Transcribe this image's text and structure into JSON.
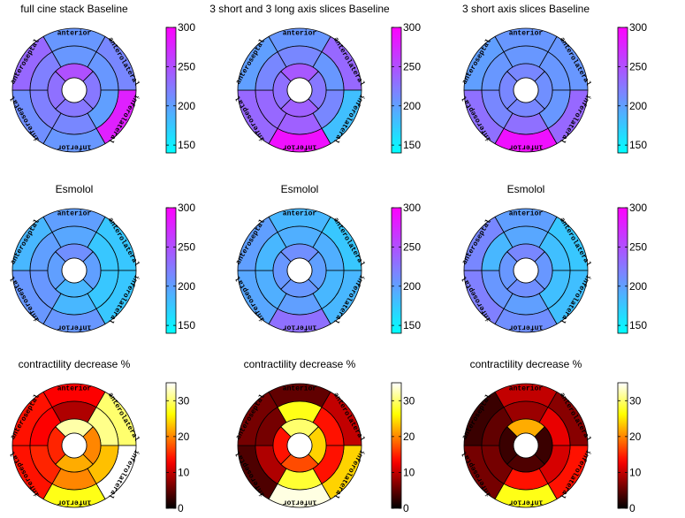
{
  "chart_data": [
    {
      "type": "bullseye",
      "title": "full cine stack Baseline",
      "colormap": "cool",
      "clim": [
        140,
        300
      ],
      "colorbar_ticks": [
        150,
        200,
        250,
        300
      ],
      "segment_labels": [
        "anterior",
        "anterolateral",
        "inferolateral",
        "inferior",
        "inferoseptal",
        "anteroseptal"
      ],
      "values": {
        "basal": [
          205,
          215,
          280,
          205,
          210,
          235
        ],
        "mid": [
          205,
          205,
          200,
          215,
          220,
          220
        ],
        "apical": [
          250,
          225,
          225,
          230
        ]
      }
    },
    {
      "type": "bullseye",
      "title": "3 short and 3 long axis slices Baseline",
      "colormap": "cool",
      "clim": [
        140,
        300
      ],
      "colorbar_ticks": [
        150,
        200,
        250,
        300
      ],
      "segment_labels": [
        "anterior",
        "anterolateral",
        "inferolateral",
        "inferior",
        "inferoseptal",
        "anteroseptal"
      ],
      "values": {
        "basal": [
          205,
          235,
          180,
          290,
          235,
          200
        ],
        "mid": [
          215,
          205,
          215,
          240,
          235,
          215
        ],
        "apical": [
          245,
          225,
          240,
          230
        ]
      }
    },
    {
      "type": "bullseye",
      "title": "3 short axis slices Baseline",
      "colormap": "cool",
      "clim": [
        140,
        300
      ],
      "colorbar_ticks": [
        150,
        200,
        250,
        300
      ],
      "segment_labels": [
        "anterior",
        "anterolateral",
        "inferolateral",
        "inferior",
        "inferoseptal",
        "anteroseptal"
      ],
      "values": {
        "basal": [
          205,
          205,
          235,
          290,
          230,
          200
        ],
        "mid": [
          205,
          205,
          205,
          230,
          215,
          205
        ],
        "apical": [
          215,
          210,
          215,
          215
        ]
      }
    },
    {
      "type": "bullseye",
      "title": "Esmolol",
      "colormap": "cool",
      "clim": [
        140,
        300
      ],
      "colorbar_ticks": [
        150,
        200,
        250,
        300
      ],
      "segment_labels": [
        "anterior",
        "anterolateral",
        "inferolateral",
        "inferior",
        "inferoseptal",
        "anteroseptal"
      ],
      "values": {
        "basal": [
          200,
          175,
          175,
          205,
          205,
          185
        ],
        "mid": [
          195,
          175,
          175,
          185,
          205,
          200
        ],
        "apical": [
          210,
          200,
          185,
          200
        ]
      }
    },
    {
      "type": "bullseye",
      "title": "Esmolol",
      "colormap": "cool",
      "clim": [
        140,
        300
      ],
      "colorbar_ticks": [
        150,
        200,
        250,
        300
      ],
      "segment_labels": [
        "anterior",
        "anterolateral",
        "inferolateral",
        "inferior",
        "inferoseptal",
        "anteroseptal"
      ],
      "values": {
        "basal": [
          185,
          175,
          185,
          230,
          195,
          200
        ],
        "mid": [
          190,
          190,
          185,
          200,
          190,
          185
        ],
        "apical": [
          210,
          200,
          205,
          205
        ]
      }
    },
    {
      "type": "bullseye",
      "title": "Esmolol",
      "colormap": "cool",
      "clim": [
        140,
        300
      ],
      "colorbar_ticks": [
        150,
        200,
        250,
        300
      ],
      "segment_labels": [
        "anterior",
        "anterolateral",
        "inferolateral",
        "inferior",
        "inferoseptal",
        "anteroseptal"
      ],
      "values": {
        "basal": [
          200,
          175,
          180,
          210,
          220,
          215
        ],
        "mid": [
          195,
          180,
          180,
          200,
          205,
          185
        ],
        "apical": [
          215,
          205,
          210,
          205
        ]
      }
    },
    {
      "type": "bullseye",
      "title": "contractility decrease %",
      "colormap": "hot",
      "clim": [
        0,
        35
      ],
      "colorbar_ticks": [
        0,
        10,
        20,
        30
      ],
      "segment_labels": [
        "anterior",
        "anterolateral",
        "inferolateral",
        "inferior",
        "inferoseptal",
        "anteroseptal"
      ],
      "values": {
        "basal": [
          13,
          30,
          35,
          27,
          14,
          14
        ],
        "mid": [
          9,
          31,
          23,
          20,
          15,
          13
        ],
        "apical": [
          32,
          20,
          22,
          15
        ]
      }
    },
    {
      "type": "bullseye",
      "title": "contractility decrease %",
      "colormap": "hot",
      "clim": [
        0,
        35
      ],
      "colorbar_ticks": [
        0,
        10,
        20,
        30
      ],
      "segment_labels": [
        "anterior",
        "anterolateral",
        "inferolateral",
        "inferior",
        "inferoseptal",
        "anteroseptal"
      ],
      "values": {
        "basal": [
          5,
          10,
          24,
          34,
          4,
          6
        ],
        "mid": [
          27,
          14,
          14,
          28,
          9,
          6
        ],
        "apical": [
          30,
          24,
          17,
          14
        ]
      }
    },
    {
      "type": "bullseye",
      "title": "contractility decrease %",
      "colormap": "hot",
      "clim": [
        0,
        35
      ],
      "colorbar_ticks": [
        0,
        10,
        20,
        30
      ],
      "segment_labels": [
        "anterior",
        "anterolateral",
        "inferolateral",
        "inferior",
        "inferoseptal",
        "anteroseptal"
      ],
      "values": {
        "basal": [
          10,
          7,
          14,
          27,
          6,
          3
        ],
        "mid": [
          8,
          12,
          11,
          14,
          6,
          5
        ],
        "apical": [
          22,
          3,
          4,
          3
        ]
      }
    }
  ]
}
